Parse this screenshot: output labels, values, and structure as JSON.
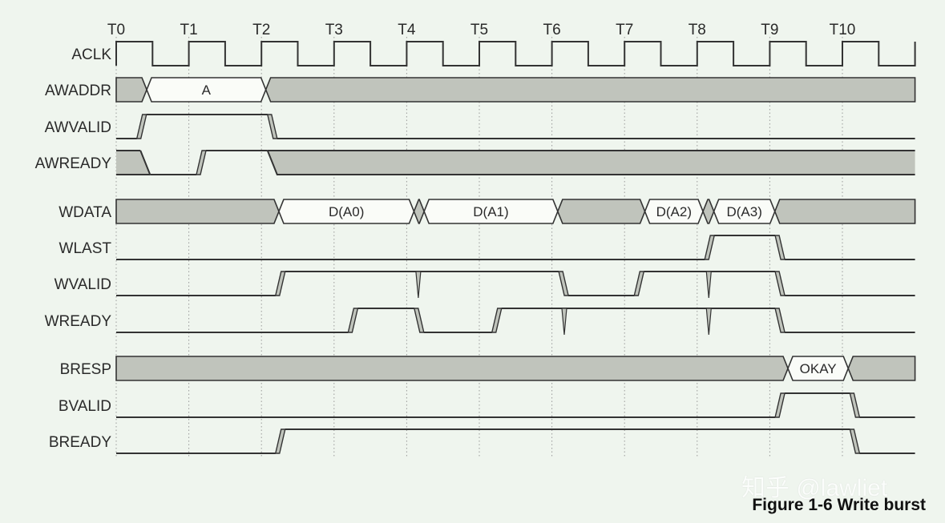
{
  "time_labels": [
    "T0",
    "T1",
    "T2",
    "T3",
    "T4",
    "T5",
    "T6",
    "T7",
    "T8",
    "T9",
    "T10"
  ],
  "time_end": 11,
  "colors": {
    "background": "#eff5ee",
    "undefined_fill": "#c0c4bc",
    "data_fill": "#fafcf8",
    "line": "#333333",
    "grid": "#9a9a9a"
  },
  "signals": [
    {
      "name": "ACLK",
      "type": "clock"
    },
    {
      "name": "AWADDR",
      "type": "bus",
      "segments": [
        {
          "end": 0.42,
          "label": null
        },
        {
          "end": 2.06,
          "label": "A"
        },
        {
          "end": 11,
          "label": null
        }
      ]
    },
    {
      "name": "AWVALID",
      "type": "bit",
      "segments": [
        {
          "end": 0.35,
          "state": "L"
        },
        {
          "end": 2.15,
          "state": "H"
        },
        {
          "end": 11,
          "state": "L"
        }
      ]
    },
    {
      "name": "AWREADY",
      "type": "bit",
      "segments": [
        {
          "end": 0.4,
          "state": "X"
        },
        {
          "end": 1.17,
          "state": "L"
        },
        {
          "end": 2.15,
          "state": "H"
        },
        {
          "end": 11,
          "state": "X"
        }
      ]
    },
    {
      "name": "WDATA",
      "type": "bus",
      "gap_before": true,
      "segments": [
        {
          "end": 2.24,
          "label": null
        },
        {
          "end": 4.1,
          "label": "D(A0)"
        },
        {
          "end": 4.24,
          "label": null
        },
        {
          "end": 6.08,
          "label": "D(A1)"
        },
        {
          "end": 7.28,
          "label": null
        },
        {
          "end": 8.08,
          "label": "D(A2)"
        },
        {
          "end": 8.23,
          "label": null
        },
        {
          "end": 9.07,
          "label": "D(A3)"
        },
        {
          "end": 11,
          "label": null
        }
      ]
    },
    {
      "name": "WLAST",
      "type": "bit",
      "segments": [
        {
          "end": 8.17,
          "state": "L"
        },
        {
          "end": 9.14,
          "state": "H"
        },
        {
          "end": 11,
          "state": "L"
        }
      ]
    },
    {
      "name": "WVALID",
      "type": "bit",
      "segments": [
        {
          "end": 2.26,
          "state": "L"
        },
        {
          "end": 6.16,
          "state": "H"
        },
        {
          "end": 7.2,
          "state": "L"
        },
        {
          "end": 9.14,
          "state": "H"
        },
        {
          "end": 11,
          "state": "L"
        }
      ],
      "spikes": [
        4.16,
        8.16
      ]
    },
    {
      "name": "WREADY",
      "type": "bit",
      "segments": [
        {
          "end": 3.26,
          "state": "L"
        },
        {
          "end": 4.17,
          "state": "H"
        },
        {
          "end": 5.24,
          "state": "L"
        },
        {
          "end": 9.14,
          "state": "H"
        },
        {
          "end": 11,
          "state": "L"
        }
      ],
      "spikes": [
        6.17,
        8.16
      ]
    },
    {
      "name": "BRESP",
      "type": "bus",
      "gap_before": true,
      "segments": [
        {
          "end": 9.25,
          "label": null
        },
        {
          "end": 10.08,
          "label": "OKAY"
        },
        {
          "end": 11,
          "label": null
        }
      ]
    },
    {
      "name": "BVALID",
      "type": "bit",
      "segments": [
        {
          "end": 9.14,
          "state": "L"
        },
        {
          "end": 10.17,
          "state": "H"
        },
        {
          "end": 11,
          "state": "L"
        }
      ]
    },
    {
      "name": "BREADY",
      "type": "bit",
      "segments": [
        {
          "end": 2.26,
          "state": "L"
        },
        {
          "end": 10.17,
          "state": "H"
        },
        {
          "end": 11,
          "state": "L"
        }
      ]
    }
  ],
  "watermark": "知乎 @lawliet",
  "caption": "Figure 1-6 Write burst"
}
